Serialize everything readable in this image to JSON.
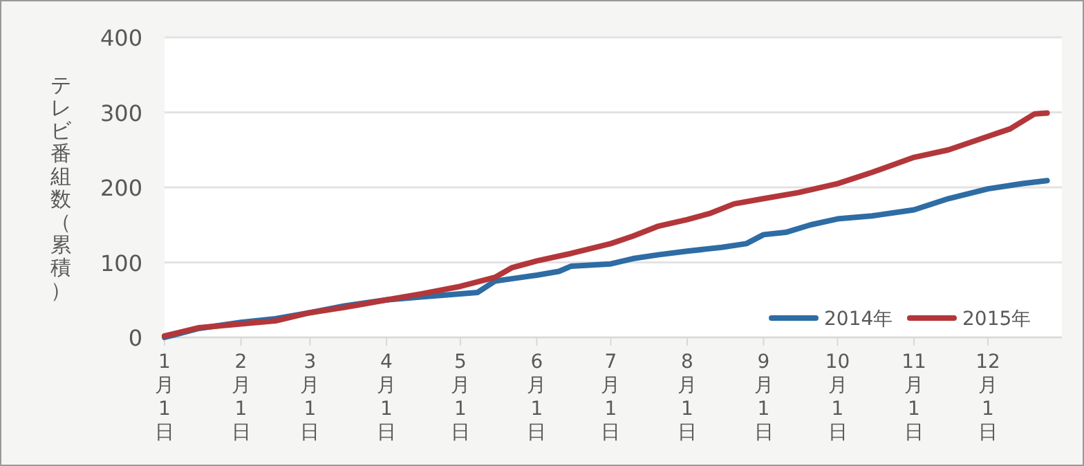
{
  "chart_data": {
    "type": "line",
    "ylabel": "テレビ番組数（累積）",
    "xlim": [
      "--01-01",
      "--12-31"
    ],
    "ylim": [
      0,
      400
    ],
    "yticks": [
      0,
      100,
      200,
      300,
      400
    ],
    "xticks": [
      {
        "value": "--01-01",
        "label": "1月1日"
      },
      {
        "value": "--02-01",
        "label": "2月1日"
      },
      {
        "value": "--03-01",
        "label": "3月1日"
      },
      {
        "value": "--04-01",
        "label": "4月1日"
      },
      {
        "value": "--05-01",
        "label": "5月1日"
      },
      {
        "value": "--06-01",
        "label": "6月1日"
      },
      {
        "value": "--07-01",
        "label": "7月1日"
      },
      {
        "value": "--08-01",
        "label": "8月1日"
      },
      {
        "value": "--09-01",
        "label": "9月1日"
      },
      {
        "value": "--10-01",
        "label": "10月1日"
      },
      {
        "value": "--11-01",
        "label": "11月1日"
      },
      {
        "value": "--12-01",
        "label": "12月1日"
      }
    ],
    "grid": "y",
    "legend": "bottom right",
    "marker": "none",
    "line_style": "solid",
    "series": [
      {
        "name": "2014年",
        "color": "#2e6ca4",
        "x": [
          "--01-01",
          "--01-15",
          "--02-01",
          "--02-15",
          "--03-01",
          "--03-15",
          "--04-01",
          "--04-15",
          "--05-01",
          "--05-08",
          "--05-15",
          "--06-01",
          "--06-10",
          "--06-15",
          "--07-01",
          "--07-10",
          "--07-20",
          "--08-01",
          "--08-15",
          "--08-25",
          "--09-01",
          "--09-10",
          "--09-20",
          "--10-01",
          "--10-15",
          "--11-01",
          "--11-15",
          "--12-01",
          "--12-15",
          "--12-25"
        ],
        "values": [
          0,
          12,
          20,
          25,
          33,
          42,
          50,
          54,
          58,
          60,
          75,
          83,
          88,
          95,
          98,
          105,
          110,
          115,
          120,
          125,
          137,
          140,
          150,
          158,
          162,
          170,
          185,
          198,
          205,
          209
        ]
      },
      {
        "name": "2015年",
        "color": "#b3373a",
        "x": [
          "--01-01",
          "--01-15",
          "--02-01",
          "--02-15",
          "--03-01",
          "--03-15",
          "--04-01",
          "--04-15",
          "--05-01",
          "--05-15",
          "--05-22",
          "--06-01",
          "--06-15",
          "--07-01",
          "--07-10",
          "--07-20",
          "--08-01",
          "--08-10",
          "--08-20",
          "--09-01",
          "--09-15",
          "--10-01",
          "--10-15",
          "--11-01",
          "--11-15",
          "--12-01",
          "--12-10",
          "--12-20",
          "--12-25"
        ],
        "values": [
          2,
          13,
          18,
          22,
          33,
          40,
          50,
          58,
          68,
          80,
          93,
          102,
          112,
          125,
          135,
          148,
          157,
          165,
          178,
          185,
          193,
          205,
          220,
          240,
          250,
          268,
          278,
          298,
          299
        ]
      }
    ]
  }
}
